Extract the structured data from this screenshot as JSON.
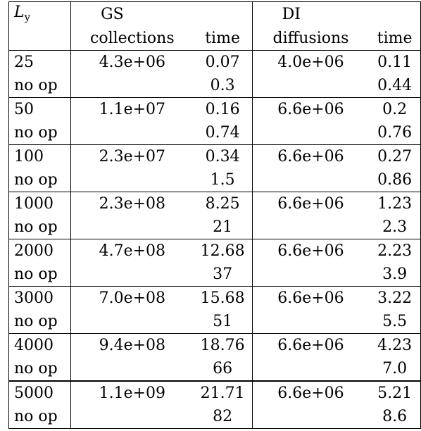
{
  "header": {
    "col_label": "L",
    "col_label_sub": "y",
    "gs_group": "GS",
    "gs_collections": "collections",
    "gs_time": "time",
    "di_group": "DI",
    "di_diffusions": "diffusions",
    "di_time": "time"
  },
  "rows": [
    {
      "ly": "25",
      "gs_collections": "4.3e+06",
      "gs_time": "0.07",
      "di_diffusions": "4.0e+06",
      "di_time": "0.11",
      "noop_label": "no op",
      "noop_gs_time": "0.3",
      "noop_di_time": "0.44"
    },
    {
      "ly": "50",
      "gs_collections": "1.1e+07",
      "gs_time": "0.16",
      "di_diffusions": "6.6e+06",
      "di_time": "0.2",
      "noop_label": "no op",
      "noop_gs_time": "0.74",
      "noop_di_time": "0.76"
    },
    {
      "ly": "100",
      "gs_collections": "2.3e+07",
      "gs_time": "0.34",
      "di_diffusions": "6.6e+06",
      "di_time": "0.27",
      "noop_label": "no op",
      "noop_gs_time": "1.5",
      "noop_di_time": "0.86"
    },
    {
      "ly": "1000",
      "gs_collections": "2.3e+08",
      "gs_time": "8.25",
      "di_diffusions": "6.6e+06",
      "di_time": "1.23",
      "noop_label": "no op",
      "noop_gs_time": "21",
      "noop_di_time": "2.3"
    },
    {
      "ly": "2000",
      "gs_collections": "4.7e+08",
      "gs_time": "12.68",
      "di_diffusions": "6.6e+06",
      "di_time": "2.23",
      "noop_label": "no op",
      "noop_gs_time": "37",
      "noop_di_time": "3.9"
    },
    {
      "ly": "3000",
      "gs_collections": "7.0e+08",
      "gs_time": "15.68",
      "di_diffusions": "6.6e+06",
      "di_time": "3.22",
      "noop_label": "no op",
      "noop_gs_time": "51",
      "noop_di_time": "5.5"
    },
    {
      "ly": "4000",
      "gs_collections": "9.4e+08",
      "gs_time": "18.76",
      "di_diffusions": "6.6e+06",
      "di_time": "4.23",
      "noop_label": "no op",
      "noop_gs_time": "66",
      "noop_di_time": "7.0"
    },
    {
      "ly": "5000",
      "gs_collections": "1.1e+09",
      "gs_time": "21.71",
      "di_diffusions": "6.6e+06",
      "di_time": "5.21",
      "noop_label": "no op",
      "noop_gs_time": "82",
      "noop_di_time": "8.6"
    }
  ]
}
